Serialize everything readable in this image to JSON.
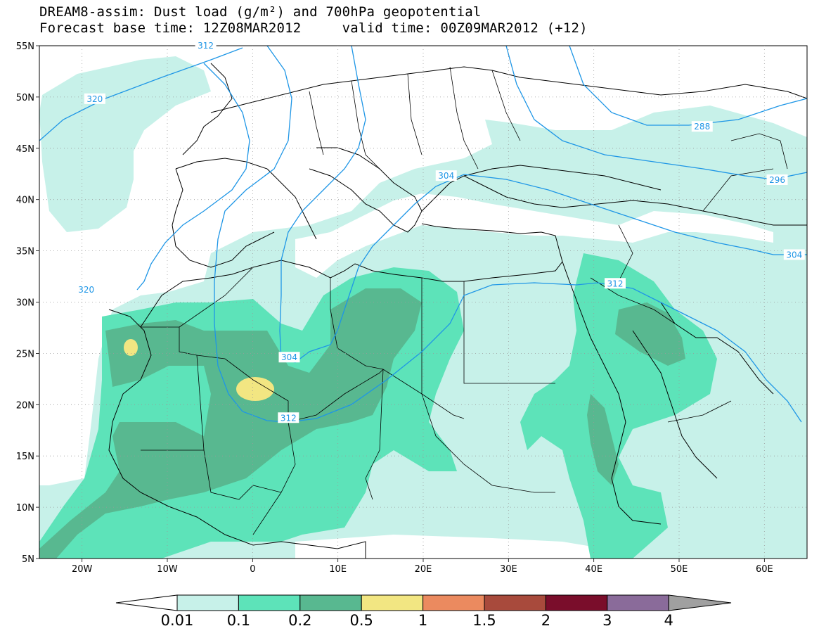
{
  "title": {
    "line1": "DREAM8-assim: Dust load (g/m²) and 700hPa geopotential",
    "forecast_base": "Forecast base time: 12Z08MAR2012",
    "valid_time": "valid time: 00Z09MAR2012 (+12)"
  },
  "map": {
    "lon_range": [
      -25,
      65
    ],
    "lat_range": [
      5,
      55
    ],
    "lon_ticks": [
      {
        "value": -20,
        "label": "20W"
      },
      {
        "value": -10,
        "label": "10W"
      },
      {
        "value": 0,
        "label": "0"
      },
      {
        "value": 10,
        "label": "10E"
      },
      {
        "value": 20,
        "label": "20E"
      },
      {
        "value": 30,
        "label": "30E"
      },
      {
        "value": 40,
        "label": "40E"
      },
      {
        "value": 50,
        "label": "50E"
      },
      {
        "value": 60,
        "label": "60E"
      }
    ],
    "lat_ticks": [
      {
        "value": 5,
        "label": "5N"
      },
      {
        "value": 10,
        "label": "10N"
      },
      {
        "value": 15,
        "label": "15N"
      },
      {
        "value": 20,
        "label": "20N"
      },
      {
        "value": 25,
        "label": "25N"
      },
      {
        "value": 30,
        "label": "30N"
      },
      {
        "value": 35,
        "label": "35N"
      },
      {
        "value": 40,
        "label": "40N"
      },
      {
        "value": 45,
        "label": "45N"
      },
      {
        "value": 50,
        "label": "50N"
      },
      {
        "value": 55,
        "label": "55N"
      }
    ],
    "contour_labels": [
      {
        "label": "312",
        "lon": -5.5,
        "lat": 55
      },
      {
        "label": "320",
        "lon": -18.5,
        "lat": 49.8
      },
      {
        "label": "320",
        "lon": -19.5,
        "lat": 31.2
      },
      {
        "label": "304",
        "lon": 4.3,
        "lat": 24.6
      },
      {
        "label": "312",
        "lon": 4.2,
        "lat": 18.7
      },
      {
        "label": "304",
        "lon": 22.7,
        "lat": 42.3
      },
      {
        "label": "288",
        "lon": 52.7,
        "lat": 47.1
      },
      {
        "label": "296",
        "lon": 61.5,
        "lat": 41.9
      },
      {
        "label": "304",
        "lon": 63.5,
        "lat": 34.6
      },
      {
        "label": "312",
        "lon": 42.5,
        "lat": 31.8
      }
    ]
  },
  "legend": {
    "labels": [
      "0.01",
      "0.1",
      "0.2",
      "0.5",
      "1",
      "1.5",
      "2",
      "3",
      "4"
    ],
    "colors": [
      "#ffffff",
      "#c7f1e9",
      "#5de3b9",
      "#58b890",
      "#f2e682",
      "#eb8a5f",
      "#a84a3c",
      "#7a0d2b",
      "#8a6b9a",
      "#a0a0a0"
    ]
  },
  "colors": {
    "contour": "#1e96e6",
    "land_border": "#000000"
  }
}
